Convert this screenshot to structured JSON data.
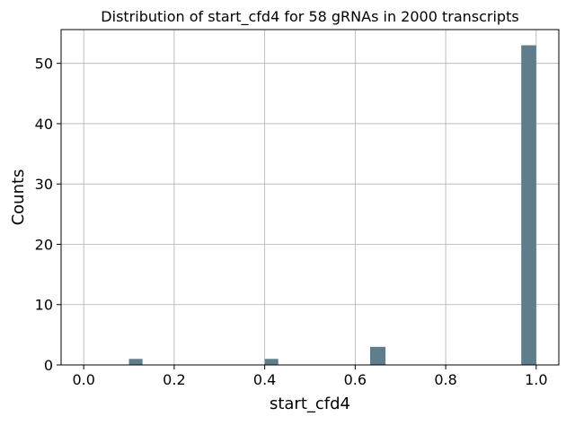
{
  "chart_data": {
    "type": "bar",
    "title": "Distribution of start_cfd4 for 58 gRNAs in 2000 transcripts",
    "xlabel": "start_cfd4",
    "ylabel": "Counts",
    "xlim": [
      -0.05,
      1.05
    ],
    "ylim": [
      0,
      55.6
    ],
    "xticks": [
      {
        "value": 0.0,
        "label": "0.0"
      },
      {
        "value": 0.2,
        "label": "0.2"
      },
      {
        "value": 0.4,
        "label": "0.4"
      },
      {
        "value": 0.6,
        "label": "0.6"
      },
      {
        "value": 0.8,
        "label": "0.8"
      },
      {
        "value": 1.0,
        "label": "1.0"
      }
    ],
    "yticks": [
      {
        "value": 0,
        "label": "0"
      },
      {
        "value": 10,
        "label": "10"
      },
      {
        "value": 20,
        "label": "20"
      },
      {
        "value": 30,
        "label": "30"
      },
      {
        "value": 40,
        "label": "40"
      },
      {
        "value": 50,
        "label": "50"
      }
    ],
    "grid": true,
    "bar_color": "#607d8b",
    "grid_color": "#b0b0b0",
    "bars": [
      {
        "x0": 0.1,
        "x1": 0.13,
        "value": 1
      },
      {
        "x0": 0.4,
        "x1": 0.43,
        "value": 1
      },
      {
        "x0": 0.633,
        "x1": 0.667,
        "value": 3
      },
      {
        "x0": 0.967,
        "x1": 1.0,
        "value": 53
      }
    ]
  }
}
